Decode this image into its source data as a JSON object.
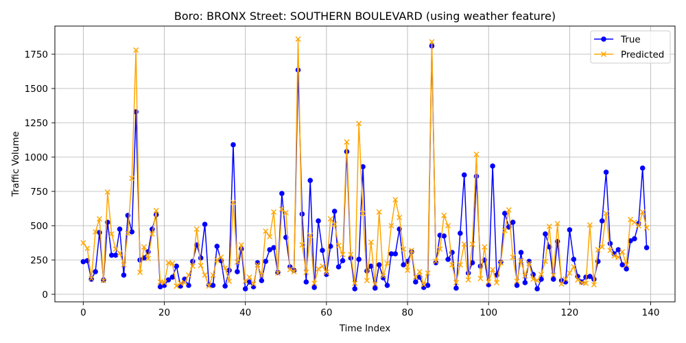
{
  "chart_data": {
    "type": "line",
    "title": "Boro: BRONX Street: SOUTHERN BOULEVARD (using weather feature)",
    "xlabel": "Time Index",
    "ylabel": "Traffic Volume",
    "x_ticks": [
      0,
      20,
      40,
      60,
      80,
      100,
      120,
      140
    ],
    "y_ticks": [
      0,
      250,
      500,
      750,
      1000,
      1250,
      1500,
      1750
    ],
    "xlim": [
      -7,
      146
    ],
    "ylim": [
      -55,
      1955
    ],
    "grid": true,
    "legend": "top-right",
    "x": [
      0,
      1,
      2,
      3,
      4,
      5,
      6,
      7,
      8,
      9,
      10,
      11,
      12,
      13,
      14,
      15,
      16,
      17,
      18,
      19,
      20,
      21,
      22,
      23,
      24,
      25,
      26,
      27,
      28,
      29,
      30,
      31,
      32,
      33,
      34,
      35,
      36,
      37,
      38,
      39,
      40,
      41,
      42,
      43,
      44,
      45,
      46,
      47,
      48,
      49,
      50,
      51,
      52,
      53,
      54,
      55,
      56,
      57,
      58,
      59,
      60,
      61,
      62,
      63,
      64,
      65,
      66,
      67,
      68,
      69,
      70,
      71,
      72,
      73,
      74,
      75,
      76,
      77,
      78,
      79,
      80,
      81,
      82,
      83,
      84,
      85,
      86,
      87,
      88,
      89,
      90,
      91,
      92,
      93,
      94,
      95,
      96,
      97,
      98,
      99,
      100,
      101,
      102,
      103,
      104,
      105,
      106,
      107,
      108,
      109,
      110,
      111,
      112,
      113,
      114,
      115,
      116,
      117,
      118,
      119,
      120,
      121,
      122,
      123,
      124,
      125,
      126,
      127,
      128,
      129,
      130,
      131,
      132,
      133,
      134,
      135,
      136,
      137,
      138,
      139
    ],
    "series": [
      {
        "name": "True",
        "color": "#0000ff",
        "marker": "circle",
        "values": [
          238,
          245,
          110,
          165,
          450,
          105,
          525,
          285,
          285,
          475,
          140,
          575,
          455,
          1330,
          250,
          265,
          310,
          475,
          580,
          55,
          65,
          105,
          125,
          205,
          60,
          110,
          65,
          240,
          360,
          265,
          510,
          70,
          65,
          350,
          245,
          60,
          175,
          1090,
          165,
          330,
          40,
          90,
          55,
          230,
          100,
          240,
          325,
          340,
          160,
          735,
          415,
          200,
          175,
          1635,
          585,
          90,
          830,
          50,
          535,
          320,
          145,
          350,
          605,
          200,
          245,
          1040,
          265,
          40,
          255,
          930,
          170,
          205,
          45,
          215,
          120,
          65,
          295,
          295,
          475,
          215,
          240,
          310,
          90,
          125,
          50,
          65,
          1810,
          230,
          430,
          425,
          255,
          305,
          45,
          445,
          870,
          155,
          230,
          860,
          205,
          250,
          70,
          935,
          140,
          235,
          590,
          490,
          525,
          65,
          305,
          85,
          240,
          145,
          40,
          110,
          440,
          345,
          110,
          385,
          100,
          90,
          470,
          255,
          130,
          90,
          125,
          130,
          110,
          240,
          535,
          890,
          370,
          295,
          325,
          215,
          185,
          390,
          405,
          515,
          920,
          340
        ]
      },
      {
        "name": "Predicted",
        "color": "#ffa500",
        "marker": "x",
        "values": [
          375,
          335,
          115,
          455,
          550,
          100,
          745,
          440,
          330,
          300,
          215,
          445,
          845,
          1780,
          160,
          345,
          260,
          440,
          610,
          90,
          85,
          230,
          225,
          60,
          80,
          85,
          140,
          205,
          475,
          210,
          140,
          60,
          140,
          250,
          270,
          190,
          95,
          670,
          235,
          360,
          95,
          125,
          75,
          215,
          140,
          460,
          420,
          600,
          155,
          620,
          595,
          180,
          165,
          1860,
          360,
          160,
          430,
          80,
          185,
          205,
          160,
          550,
          510,
          355,
          290,
          1110,
          290,
          80,
          1245,
          590,
          100,
          380,
          75,
          600,
          135,
          225,
          500,
          690,
          560,
          330,
          175,
          320,
          125,
          165,
          70,
          155,
          1840,
          240,
          330,
          575,
          500,
          215,
          85,
          215,
          365,
          105,
          365,
          1020,
          115,
          345,
          90,
          180,
          85,
          230,
          465,
          615,
          270,
          95,
          245,
          135,
          225,
          110,
          100,
          145,
          240,
          495,
          140,
          515,
          75,
          110,
          155,
          200,
          105,
          85,
          80,
          505,
          70,
          325,
          345,
          590,
          320,
          280,
          270,
          310,
          215,
          545,
          525,
          500,
          600,
          485
        ]
      }
    ]
  }
}
